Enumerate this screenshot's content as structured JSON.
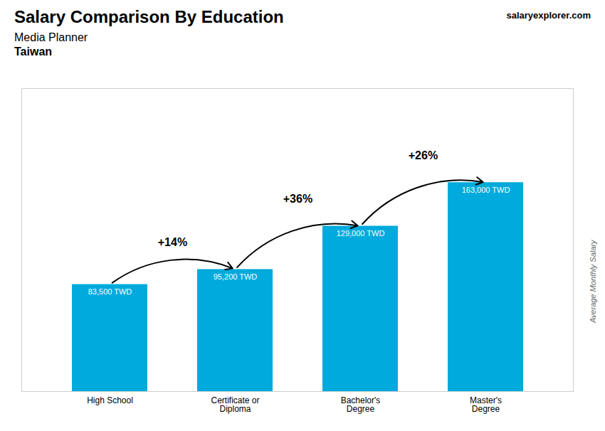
{
  "chart_data": {
    "type": "bar",
    "title": "Salary Comparison By Education",
    "subtitle": [
      "Media Planner",
      "Taiwan"
    ],
    "ylabel": "Average Monthly Salary",
    "categories": [
      "High School",
      "Certificate or\nDiploma",
      "Bachelor's\nDegree",
      "Master's\nDegree"
    ],
    "values": [
      83500,
      95200,
      129000,
      163000
    ],
    "value_labels": [
      "83,500 TWD",
      "95,200 TWD",
      "129,000 TWD",
      "163,000 TWD"
    ],
    "data_labels": true,
    "color": "#00aadd",
    "annotations": [
      "+14%",
      "+36%",
      "+26%"
    ],
    "watermark": "salaryexplorer.com",
    "ylim": [
      0,
      236350
    ],
    "tick_labels": "x"
  }
}
